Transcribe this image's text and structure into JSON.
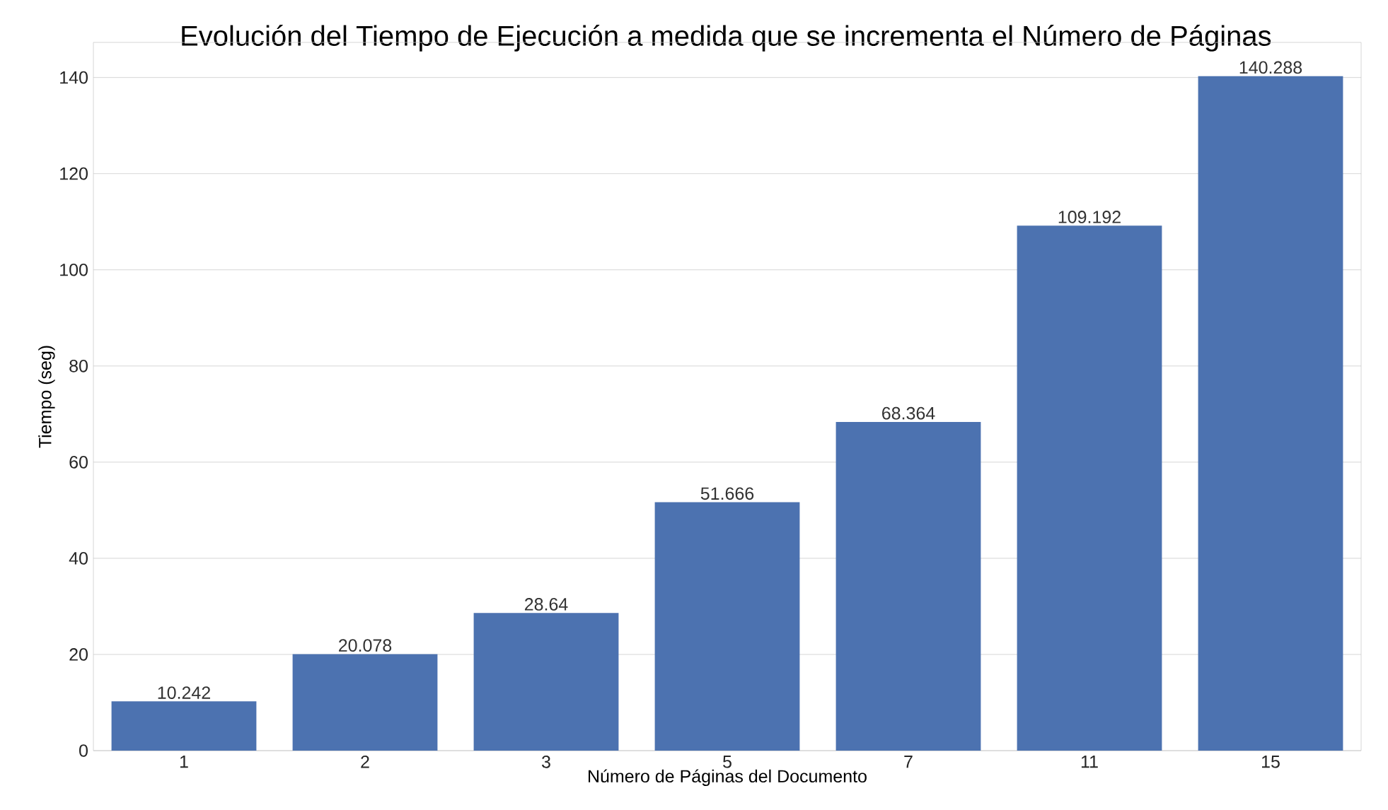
{
  "chart_data": {
    "type": "bar",
    "title": "Evolución del Tiempo de Ejecución a medida que se incrementa el Número de Páginas",
    "xlabel": "Número de Páginas del Documento",
    "ylabel": "Tiempo (seg)",
    "categories": [
      "1",
      "2",
      "3",
      "5",
      "7",
      "11",
      "15"
    ],
    "values": [
      10.242,
      20.078,
      28.64,
      51.666,
      68.364,
      109.192,
      140.288
    ],
    "color": "#4c72b0",
    "ylim": [
      0,
      147.3
    ],
    "yticks": [
      0,
      20,
      40,
      60,
      80,
      100,
      120,
      140
    ],
    "grid": "y",
    "data_labels": true
  }
}
